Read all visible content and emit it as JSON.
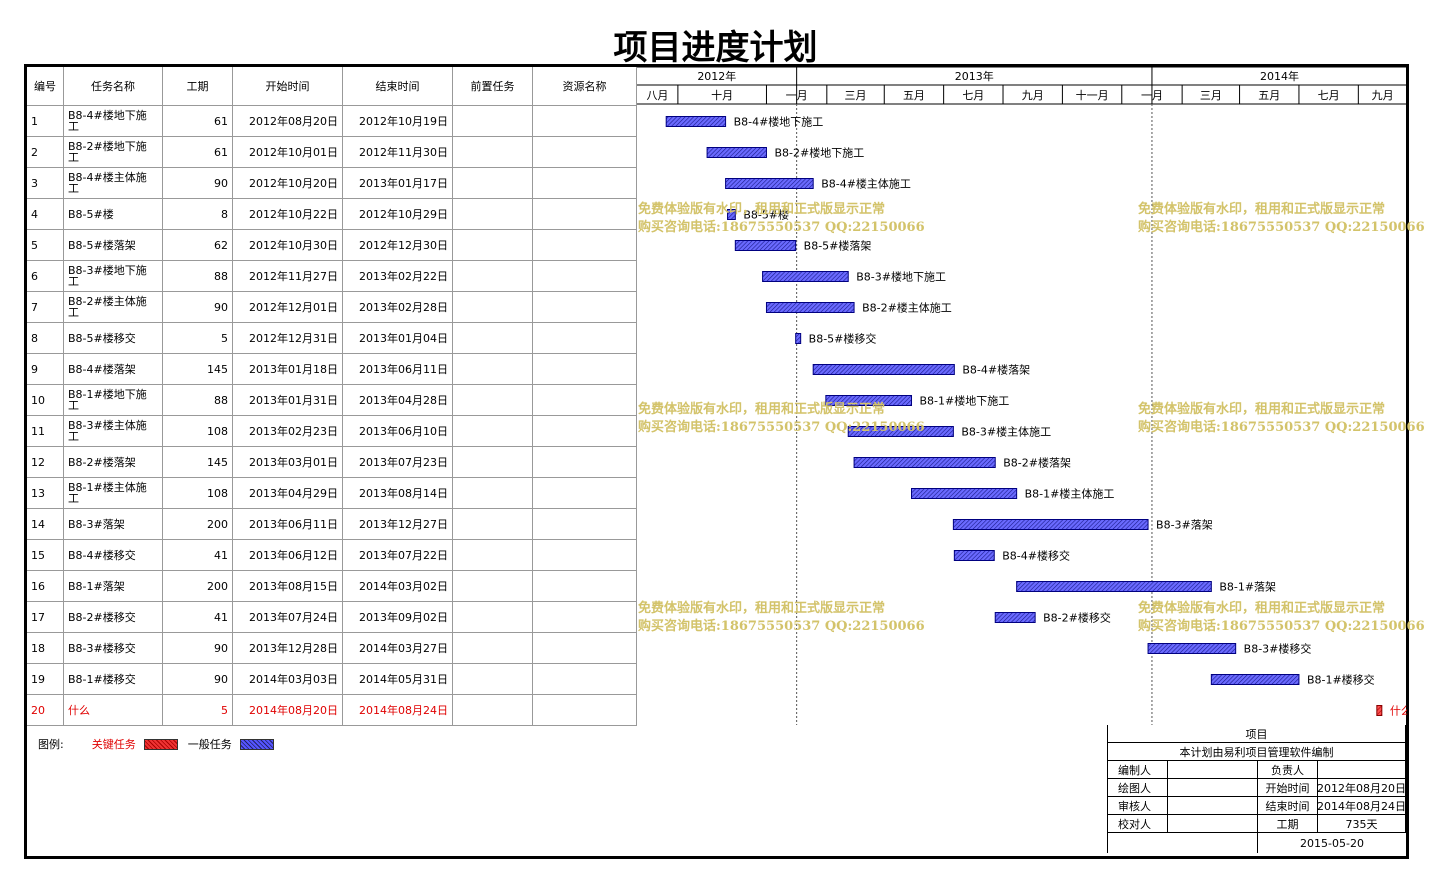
{
  "title": "项目进度计划",
  "headers": [
    "编号",
    "任务名称",
    "工期",
    "开始时间",
    "结束时间",
    "前置任务",
    "资源名称"
  ],
  "years": [
    "2012年",
    "2013年",
    "2014年"
  ],
  "months": [
    "八月",
    "十月",
    "一月",
    "三月",
    "五月",
    "七月",
    "九月",
    "十一月",
    "一月",
    "三月",
    "五月",
    "七月",
    "九月"
  ],
  "chart_data": {
    "type": "gantt",
    "x_range": [
      "2012-07-21",
      "2014-09-20"
    ],
    "tasks": [
      {
        "id": "1",
        "name": "B8-4#楼地下施工",
        "duration": 61,
        "start": "2012年08月20日",
        "end": "2012年10月19日",
        "s": "2012-08-20",
        "e": "2012-10-19",
        "critical": false
      },
      {
        "id": "2",
        "name": "B8-2#楼地下施工",
        "duration": 61,
        "start": "2012年10月01日",
        "end": "2012年11月30日",
        "s": "2012-10-01",
        "e": "2012-11-30",
        "critical": false
      },
      {
        "id": "3",
        "name": "B8-4#楼主体施工",
        "duration": 90,
        "start": "2012年10月20日",
        "end": "2013年01月17日",
        "s": "2012-10-20",
        "e": "2013-01-17",
        "critical": false
      },
      {
        "id": "4",
        "name": "B8-5#楼",
        "duration": 8,
        "start": "2012年10月22日",
        "end": "2012年10月29日",
        "s": "2012-10-22",
        "e": "2012-10-29",
        "critical": false
      },
      {
        "id": "5",
        "name": "B8-5#楼落架",
        "duration": 62,
        "start": "2012年10月30日",
        "end": "2012年12月30日",
        "s": "2012-10-30",
        "e": "2012-12-30",
        "critical": false
      },
      {
        "id": "6",
        "name": "B8-3#楼地下施工",
        "duration": 88,
        "start": "2012年11月27日",
        "end": "2013年02月22日",
        "s": "2012-11-27",
        "e": "2013-02-22",
        "critical": false
      },
      {
        "id": "7",
        "name": "B8-2#楼主体施工",
        "duration": 90,
        "start": "2012年12月01日",
        "end": "2013年02月28日",
        "s": "2012-12-01",
        "e": "2013-02-28",
        "critical": false
      },
      {
        "id": "8",
        "name": "B8-5#楼移交",
        "duration": 5,
        "start": "2012年12月31日",
        "end": "2013年01月04日",
        "s": "2012-12-31",
        "e": "2013-01-04",
        "critical": false
      },
      {
        "id": "9",
        "name": "B8-4#楼落架",
        "duration": 145,
        "start": "2013年01月18日",
        "end": "2013年06月11日",
        "s": "2013-01-18",
        "e": "2013-06-11",
        "critical": false
      },
      {
        "id": "10",
        "name": "B8-1#楼地下施工",
        "duration": 88,
        "start": "2013年01月31日",
        "end": "2013年04月28日",
        "s": "2013-01-31",
        "e": "2013-04-28",
        "critical": false
      },
      {
        "id": "11",
        "name": "B8-3#楼主体施工",
        "duration": 108,
        "start": "2013年02月23日",
        "end": "2013年06月10日",
        "s": "2013-02-23",
        "e": "2013-06-10",
        "critical": false
      },
      {
        "id": "12",
        "name": "B8-2#楼落架",
        "duration": 145,
        "start": "2013年03月01日",
        "end": "2013年07月23日",
        "s": "2013-03-01",
        "e": "2013-07-23",
        "critical": false
      },
      {
        "id": "13",
        "name": "B8-1#楼主体施工",
        "duration": 108,
        "start": "2013年04月29日",
        "end": "2013年08月14日",
        "s": "2013-04-29",
        "e": "2013-08-14",
        "critical": false
      },
      {
        "id": "14",
        "name": "B8-3#落架",
        "duration": 200,
        "start": "2013年06月11日",
        "end": "2013年12月27日",
        "s": "2013-06-11",
        "e": "2013-12-27",
        "critical": false
      },
      {
        "id": "15",
        "name": "B8-4#楼移交",
        "duration": 41,
        "start": "2013年06月12日",
        "end": "2013年07月22日",
        "s": "2013-06-12",
        "e": "2013-07-22",
        "critical": false
      },
      {
        "id": "16",
        "name": "B8-1#落架",
        "duration": 200,
        "start": "2013年08月15日",
        "end": "2014年03月02日",
        "s": "2013-08-15",
        "e": "2014-03-02",
        "critical": false
      },
      {
        "id": "17",
        "name": "B8-2#楼移交",
        "duration": 41,
        "start": "2013年07月24日",
        "end": "2013年09月02日",
        "s": "2013-07-24",
        "e": "2013-09-02",
        "critical": false
      },
      {
        "id": "18",
        "name": "B8-3#楼移交",
        "duration": 90,
        "start": "2013年12月28日",
        "end": "2014年03月27日",
        "s": "2013-12-28",
        "e": "2014-03-27",
        "critical": false
      },
      {
        "id": "19",
        "name": "B8-1#楼移交",
        "duration": 90,
        "start": "2014年03月03日",
        "end": "2014年05月31日",
        "s": "2014-03-03",
        "e": "2014-05-31",
        "critical": false
      },
      {
        "id": "20",
        "name": "什么",
        "duration": 5,
        "start": "2014年08月20日",
        "end": "2014年08月24日",
        "s": "2014-08-20",
        "e": "2014-08-24",
        "critical": true
      }
    ]
  },
  "watermark": {
    "line1": "免费体验版有水印，租用和正式版显示正常",
    "line2": "购买咨询电话:18675550537 QQ:22150066"
  },
  "legend": {
    "label": "图例:",
    "critical": "关键任务",
    "normal": "一般任务"
  },
  "info": {
    "project_label": "项目",
    "note": "本计划由易利项目管理软件编制",
    "editor_label": "编制人",
    "editor": "",
    "owner_label": "负责人",
    "owner": "",
    "drawer_label": "绘图人",
    "drawer": "",
    "start_label": "开始时间",
    "start": "2012年08月20日",
    "reviewer_label": "审核人",
    "reviewer": "",
    "end_label": "结束时间",
    "end": "2014年08月24日",
    "checker_label": "校对人",
    "checker": "",
    "duration_label": "工期",
    "duration": "735天",
    "date": "2015-05-20"
  }
}
